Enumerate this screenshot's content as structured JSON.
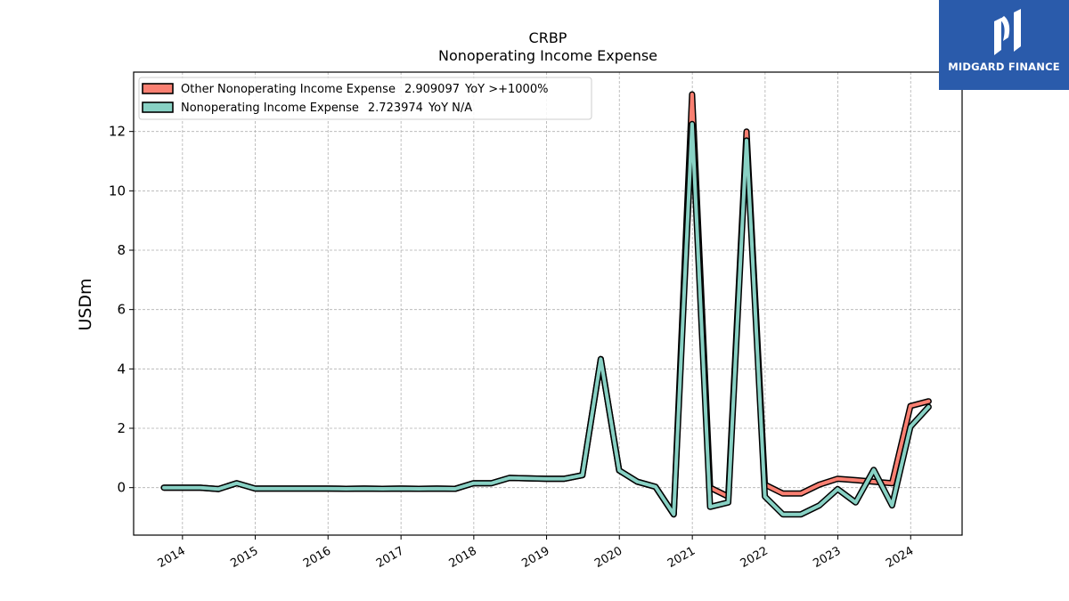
{
  "brand": {
    "name": "MIDGARD FINANCE",
    "color": "#2a5bab"
  },
  "chart_data": {
    "type": "line",
    "title": "CRBP",
    "subtitle": "Nonoperating Income Expense",
    "ylabel": "USDm",
    "xlabel": "",
    "ylim": [
      -1.6,
      14
    ],
    "yticks": [
      0,
      2,
      4,
      6,
      8,
      10,
      12
    ],
    "xlim": [
      "2013-05-01",
      "2024-09-15"
    ],
    "xticks": [
      "2014",
      "2015",
      "2016",
      "2017",
      "2018",
      "2019",
      "2020",
      "2021",
      "2022",
      "2023",
      "2024"
    ],
    "grid": true,
    "legend_position": "top-left",
    "x": [
      "2013-09-30",
      "2013-12-31",
      "2014-03-31",
      "2014-06-30",
      "2014-09-30",
      "2014-12-31",
      "2015-03-31",
      "2015-06-30",
      "2015-09-30",
      "2015-12-31",
      "2016-03-31",
      "2016-06-30",
      "2016-09-30",
      "2016-12-31",
      "2017-03-31",
      "2017-06-30",
      "2017-09-30",
      "2017-12-31",
      "2018-03-31",
      "2018-06-30",
      "2018-09-30",
      "2018-12-31",
      "2019-03-31",
      "2019-06-30",
      "2019-09-30",
      "2019-12-31",
      "2020-03-31",
      "2020-06-30",
      "2020-09-30",
      "2020-12-31",
      "2021-03-31",
      "2021-06-30",
      "2021-09-30",
      "2021-12-31",
      "2022-03-31",
      "2022-06-30",
      "2022-09-30",
      "2022-12-31",
      "2023-03-31",
      "2023-06-30",
      "2023-09-30",
      "2023-12-31",
      "2024-03-31"
    ],
    "series": [
      {
        "name": "Other Nonoperating Income Expense",
        "legend_value": "2.909097",
        "legend_yoy": "YoY >+1000%",
        "color": "#fa8072",
        "values": [
          0.0,
          0.0,
          0.0,
          -0.05,
          0.15,
          -0.03,
          -0.03,
          -0.03,
          -0.03,
          -0.03,
          -0.04,
          -0.03,
          -0.04,
          -0.03,
          -0.04,
          -0.03,
          -0.04,
          0.15,
          0.15,
          0.33,
          0.31,
          0.3,
          0.3,
          0.42,
          4.33,
          0.58,
          0.2,
          0.03,
          -0.9,
          13.25,
          0.0,
          -0.3,
          12.0,
          0.1,
          -0.2,
          -0.2,
          0.1,
          0.3,
          0.25,
          0.2,
          0.15,
          2.75,
          2.91
        ]
      },
      {
        "name": "Nonoperating Income Expense",
        "legend_value": "2.723974",
        "legend_yoy": "YoY N/A",
        "color": "#88d1c4",
        "values": [
          0.0,
          0.0,
          0.0,
          -0.05,
          0.15,
          -0.03,
          -0.03,
          -0.03,
          -0.03,
          -0.03,
          -0.04,
          -0.03,
          -0.04,
          -0.03,
          -0.04,
          -0.03,
          -0.04,
          0.15,
          0.15,
          0.33,
          0.31,
          0.3,
          0.3,
          0.42,
          4.33,
          0.58,
          0.2,
          0.03,
          -0.9,
          12.25,
          -0.65,
          -0.5,
          11.7,
          -0.3,
          -0.9,
          -0.9,
          -0.6,
          -0.05,
          -0.5,
          0.6,
          -0.6,
          2.05,
          2.72
        ]
      }
    ]
  }
}
